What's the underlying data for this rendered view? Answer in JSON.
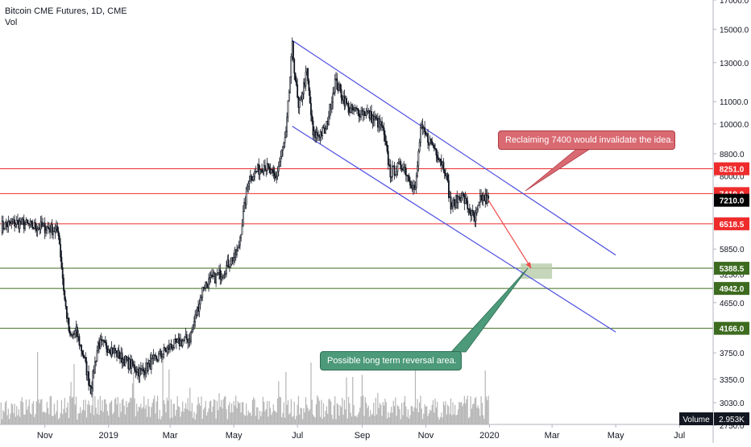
{
  "header": {
    "title": "Bitcoin CME Futures, 1D, CME",
    "subtitle": "Vol"
  },
  "colors": {
    "candles": "#131722",
    "resistance_lines": "#ef2c2c",
    "support_lines": "#3d6b1f",
    "channel": "#4a4ee0",
    "arrow": "#ef4a4a",
    "reversal_zone": "#b7ccaa",
    "volume": "#b5b5b5",
    "current_price_bg": "#000000",
    "red_callout": "#d96a72",
    "green_callout": "#4c9a7a"
  },
  "chart_data": {
    "type": "candlestick",
    "title": "Bitcoin CME Futures, 1D, CME",
    "y_scale": "log",
    "ylim": [
      2760,
      17000
    ],
    "xlim": [
      "2018-09-19",
      "2020-07-31"
    ],
    "y_ticks": [
      "17000.0",
      "15000.0",
      "13000.0",
      "11000.0",
      "10000.0",
      "8800.0",
      "8000.0",
      "5850.0",
      "5250.0",
      "4650.0",
      "3750.0",
      "3350.0",
      "3030.0",
      "2750.0"
    ],
    "x_ticks": [
      {
        "label": "Nov",
        "date": "2018-11-01"
      },
      {
        "label": "2019",
        "date": "2019-01-01"
      },
      {
        "label": "Mar",
        "date": "2019-03-01"
      },
      {
        "label": "May",
        "date": "2019-05-01"
      },
      {
        "label": "Jul",
        "date": "2019-07-01"
      },
      {
        "label": "Sep",
        "date": "2019-09-01"
      },
      {
        "label": "Nov",
        "date": "2019-11-01"
      },
      {
        "label": "2020",
        "date": "2020-01-01"
      },
      {
        "label": "Mar",
        "date": "2020-03-01"
      },
      {
        "label": "May",
        "date": "2020-05-01"
      },
      {
        "label": "Jul",
        "date": "2020-07-01"
      }
    ],
    "price_path": [
      {
        "date": "2018-09-20",
        "close": 6450
      },
      {
        "date": "2018-10-05",
        "close": 6550
      },
      {
        "date": "2018-10-20",
        "close": 6450
      },
      {
        "date": "2018-11-05",
        "close": 6400
      },
      {
        "date": "2018-11-14",
        "close": 6300
      },
      {
        "date": "2018-11-20",
        "close": 4700
      },
      {
        "date": "2018-11-25",
        "close": 4000
      },
      {
        "date": "2018-12-01",
        "close": 4100
      },
      {
        "date": "2018-12-08",
        "close": 3700
      },
      {
        "date": "2018-12-15",
        "close": 3200
      },
      {
        "date": "2018-12-22",
        "close": 3900
      },
      {
        "date": "2019-01-01",
        "close": 3850
      },
      {
        "date": "2019-01-15",
        "close": 3650
      },
      {
        "date": "2019-02-01",
        "close": 3450
      },
      {
        "date": "2019-02-15",
        "close": 3650
      },
      {
        "date": "2019-03-01",
        "close": 3850
      },
      {
        "date": "2019-03-20",
        "close": 4000
      },
      {
        "date": "2019-04-02",
        "close": 5000
      },
      {
        "date": "2019-04-20",
        "close": 5300
      },
      {
        "date": "2019-05-05",
        "close": 5800
      },
      {
        "date": "2019-05-15",
        "close": 7900
      },
      {
        "date": "2019-05-30",
        "close": 8400
      },
      {
        "date": "2019-06-10",
        "close": 7900
      },
      {
        "date": "2019-06-20",
        "close": 9500
      },
      {
        "date": "2019-06-26",
        "close": 13900
      },
      {
        "date": "2019-07-02",
        "close": 10600
      },
      {
        "date": "2019-07-10",
        "close": 12500
      },
      {
        "date": "2019-07-16",
        "close": 9500
      },
      {
        "date": "2019-07-28",
        "close": 9700
      },
      {
        "date": "2019-08-06",
        "close": 12000
      },
      {
        "date": "2019-08-20",
        "close": 10600
      },
      {
        "date": "2019-09-05",
        "close": 10500
      },
      {
        "date": "2019-09-20",
        "close": 9900
      },
      {
        "date": "2019-09-28",
        "close": 8100
      },
      {
        "date": "2019-10-10",
        "close": 8400
      },
      {
        "date": "2019-10-22",
        "close": 7500
      },
      {
        "date": "2019-10-27",
        "close": 9800
      },
      {
        "date": "2019-11-10",
        "close": 9000
      },
      {
        "date": "2019-11-20",
        "close": 8200
      },
      {
        "date": "2019-11-25",
        "close": 7000
      },
      {
        "date": "2019-12-05",
        "close": 7400
      },
      {
        "date": "2019-12-18",
        "close": 6600
      },
      {
        "date": "2019-12-24",
        "close": 7300
      },
      {
        "date": "2019-12-31",
        "close": 7210
      }
    ],
    "horizontal_levels": [
      {
        "value": 8251.0,
        "label": "8251.0",
        "color": "#ef2c2c"
      },
      {
        "value": 7419.0,
        "label": "7419.0",
        "color": "#ef2c2c"
      },
      {
        "value": 6518.5,
        "label": "6518.5",
        "color": "#ef2c2c"
      },
      {
        "value": 5388.5,
        "label": "5388.5",
        "color": "#3d6b1f"
      },
      {
        "value": 4942.0,
        "label": "4942.0",
        "color": "#3d6b1f"
      },
      {
        "value": 4166.0,
        "label": "4166.0",
        "color": "#3d6b1f"
      }
    ],
    "current_price": {
      "value": 7210.0,
      "label": "7210.0"
    },
    "channel": {
      "upper": [
        {
          "date": "2019-06-26",
          "price": 14300
        },
        {
          "date": "2020-05-01",
          "price": 5700
        }
      ],
      "lower": [
        {
          "date": "2019-06-26",
          "price": 9900
        },
        {
          "date": "2020-05-01",
          "price": 4100
        }
      ]
    },
    "arrow": {
      "from": {
        "date": "2019-12-31",
        "price": 7210
      },
      "to": {
        "date": "2020-02-10",
        "price": 5388
      }
    },
    "reversal_zone": {
      "x_from": "2020-01-31",
      "x_to": "2020-03-01",
      "y_from": 5150,
      "y_to": 5500
    },
    "volume": {
      "label": "Volume",
      "last": "2.953K"
    },
    "annotations": [
      {
        "text": "Reclaiming 7400 would invalidate the idea.",
        "style": "red"
      },
      {
        "text": "Possible long term reversal area.",
        "style": "green"
      }
    ]
  }
}
